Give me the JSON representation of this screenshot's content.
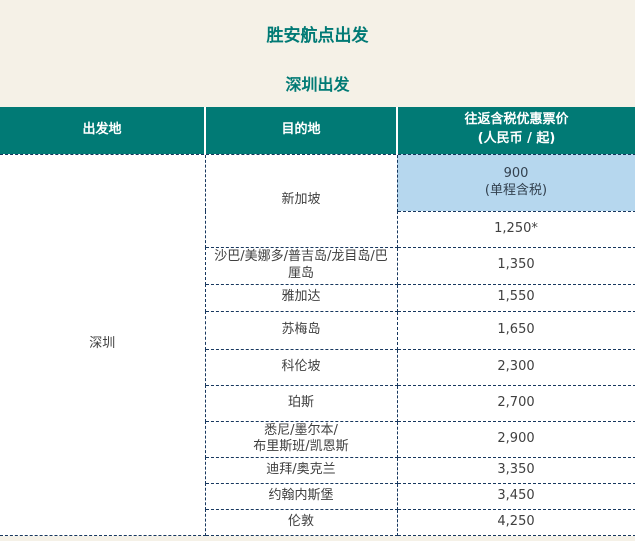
{
  "page": {
    "title": "胜安航点出发",
    "subtitle": "深圳出发"
  },
  "colors": {
    "accent_teal": "#017a75",
    "border_navy": "#17375e",
    "highlight_blue": "#b6d7ee",
    "page_background": "#f5f1e7",
    "body_text": "#404040"
  },
  "table": {
    "headers": {
      "origin": "出发地",
      "destination": "目的地",
      "price": "往返含税优惠票价\n(人民币 / 起)"
    },
    "origin": "深圳",
    "rows": [
      {
        "destination": "新加坡",
        "destination_rowspan": 2,
        "price": "900\n(单程含税)",
        "highlight": true
      },
      {
        "price": "1,250*"
      },
      {
        "destination": "沙巴/美娜多/普吉岛/龙目岛/巴厘岛",
        "price": "1,350"
      },
      {
        "destination": "雅加达",
        "price": "1,550"
      },
      {
        "destination": "苏梅岛",
        "price": "1,650"
      },
      {
        "destination": "科伦坡",
        "price": "2,300"
      },
      {
        "destination": "珀斯",
        "price": "2,700"
      },
      {
        "destination": "悉尼/墨尔本/\n布里斯班/凯恩斯",
        "price": "2,900"
      },
      {
        "destination": "迪拜/奥克兰",
        "price": "3,350"
      },
      {
        "destination": "约翰内斯堡",
        "price": "3,450"
      },
      {
        "destination": "伦敦",
        "price": "4,250"
      }
    ]
  }
}
